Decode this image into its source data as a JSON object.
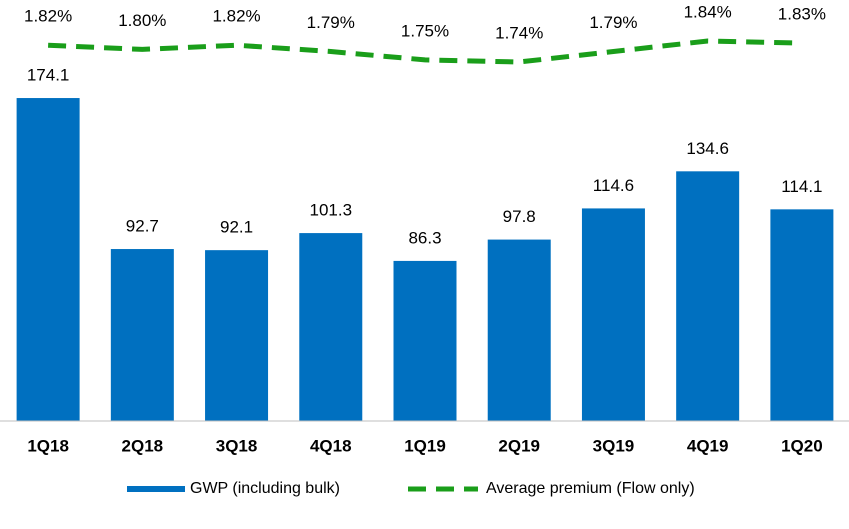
{
  "chart_data": {
    "type": "bar",
    "categories": [
      "1Q18",
      "2Q18",
      "3Q18",
      "4Q18",
      "1Q19",
      "2Q19",
      "3Q19",
      "4Q19",
      "1Q20"
    ],
    "series": [
      {
        "name": "GWP (including bulk)",
        "type": "bar",
        "color": "#0070c0",
        "values": [
          174.1,
          92.7,
          92.1,
          101.3,
          86.3,
          97.8,
          114.6,
          134.6,
          114.1
        ]
      },
      {
        "name": "Average premium (Flow only)",
        "type": "line",
        "axis": "y2",
        "color": "#1a9e1a",
        "dashed": true,
        "values": [
          1.82,
          1.8,
          1.82,
          1.79,
          1.75,
          1.74,
          1.79,
          1.84,
          1.83
        ],
        "value_labels": [
          "1.82%",
          "1.80%",
          "1.82%",
          "1.79%",
          "1.75%",
          "1.74%",
          "1.79%",
          "1.84%",
          "1.83%"
        ]
      }
    ],
    "ylim": [
      0,
      200
    ],
    "y2lim": [
      1.6,
      1.9
    ]
  }
}
